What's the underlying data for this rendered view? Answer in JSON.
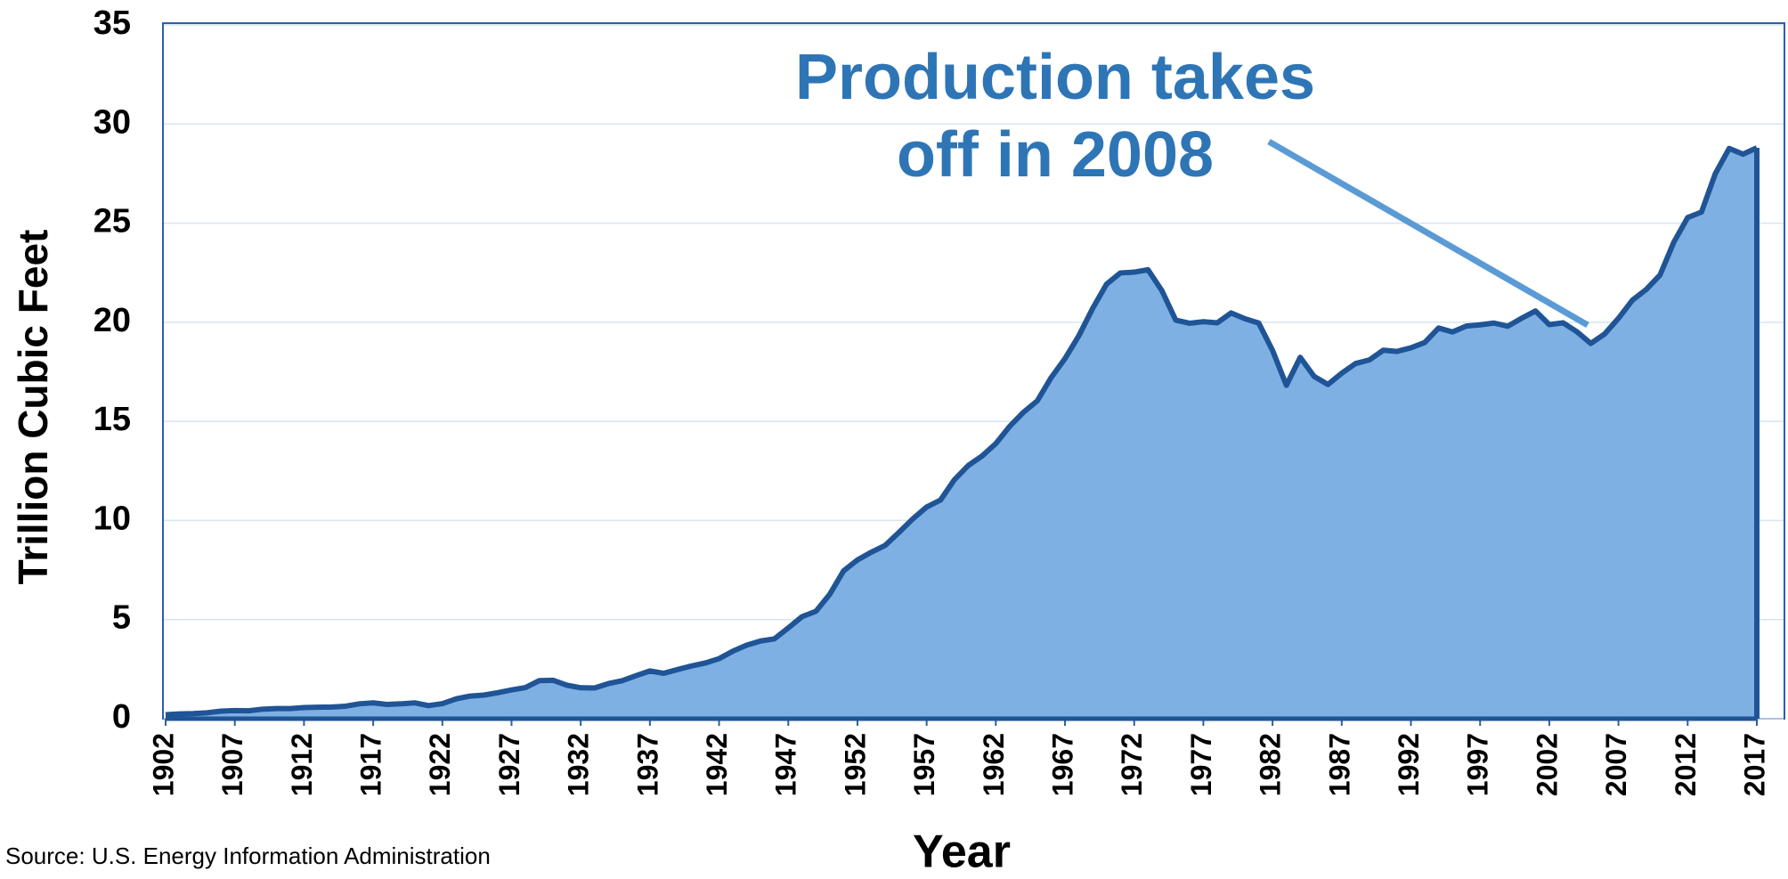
{
  "chart_data": {
    "type": "area",
    "y_label": "Trillion Cubic Feet",
    "x_label": "Year",
    "source": "Source: U.S. Energy Information Administration",
    "annotation": [
      "Production takes",
      "off in 2008"
    ],
    "x": [
      1902,
      1903,
      1904,
      1905,
      1906,
      1907,
      1908,
      1909,
      1910,
      1911,
      1912,
      1913,
      1914,
      1915,
      1916,
      1917,
      1918,
      1919,
      1920,
      1921,
      1922,
      1923,
      1924,
      1925,
      1926,
      1927,
      1928,
      1929,
      1930,
      1931,
      1932,
      1933,
      1934,
      1935,
      1936,
      1937,
      1938,
      1939,
      1940,
      1941,
      1942,
      1943,
      1944,
      1945,
      1946,
      1947,
      1948,
      1949,
      1950,
      1951,
      1952,
      1953,
      1954,
      1955,
      1956,
      1957,
      1958,
      1959,
      1960,
      1961,
      1962,
      1963,
      1964,
      1965,
      1966,
      1967,
      1968,
      1969,
      1970,
      1971,
      1972,
      1973,
      1974,
      1975,
      1976,
      1977,
      1978,
      1979,
      1980,
      1981,
      1982,
      1983,
      1984,
      1985,
      1986,
      1987,
      1988,
      1989,
      1990,
      1991,
      1992,
      1993,
      1994,
      1995,
      1996,
      1997,
      1998,
      1999,
      2000,
      2001,
      2002,
      2003,
      2004,
      2005,
      2006,
      2007,
      2008,
      2009,
      2010,
      2011,
      2012,
      2013,
      2014,
      2015,
      2016,
      2017
    ],
    "values": [
      0.2,
      0.24,
      0.26,
      0.3,
      0.38,
      0.41,
      0.4,
      0.48,
      0.51,
      0.51,
      0.56,
      0.58,
      0.59,
      0.63,
      0.75,
      0.8,
      0.72,
      0.75,
      0.8,
      0.66,
      0.76,
      1.0,
      1.14,
      1.19,
      1.31,
      1.45,
      1.57,
      1.92,
      1.94,
      1.69,
      1.56,
      1.55,
      1.77,
      1.92,
      2.17,
      2.41,
      2.29,
      2.48,
      2.66,
      2.81,
      3.03,
      3.41,
      3.71,
      3.92,
      4.03,
      4.58,
      5.15,
      5.42,
      6.28,
      7.46,
      8.01,
      8.4,
      8.74,
      9.4,
      10.08,
      10.68,
      11.03,
      12.05,
      12.77,
      13.25,
      13.88,
      14.75,
      15.46,
      16.04,
      17.21,
      18.17,
      19.32,
      20.7,
      21.92,
      22.49,
      22.53,
      22.65,
      21.6,
      20.11,
      19.95,
      20.03,
      19.97,
      20.47,
      20.18,
      19.96,
      18.58,
      16.82,
      18.23,
      17.27,
      16.86,
      17.43,
      17.92,
      18.1,
      18.59,
      18.53,
      18.71,
      18.98,
      19.71,
      19.51,
      19.81,
      19.87,
      19.96,
      19.8,
      20.2,
      20.57,
      19.88,
      19.97,
      19.52,
      18.93,
      19.41,
      20.2,
      21.11,
      21.65,
      22.38,
      24.04,
      25.28,
      25.56,
      27.5,
      28.77,
      28.48,
      28.8
    ],
    "color": "#7fb0e3",
    "line_color": "#1f5496",
    "xlim": [
      1902,
      2017
    ],
    "xticks": [
      1902,
      1907,
      1912,
      1917,
      1922,
      1927,
      1932,
      1937,
      1942,
      1947,
      1952,
      1957,
      1962,
      1967,
      1972,
      1977,
      1982,
      1987,
      1992,
      1997,
      2002,
      2007,
      2012,
      2017
    ],
    "ylim": [
      0,
      35
    ],
    "yticks": [
      0,
      5,
      10,
      15,
      20,
      25,
      30,
      35
    ],
    "grid": true
  }
}
